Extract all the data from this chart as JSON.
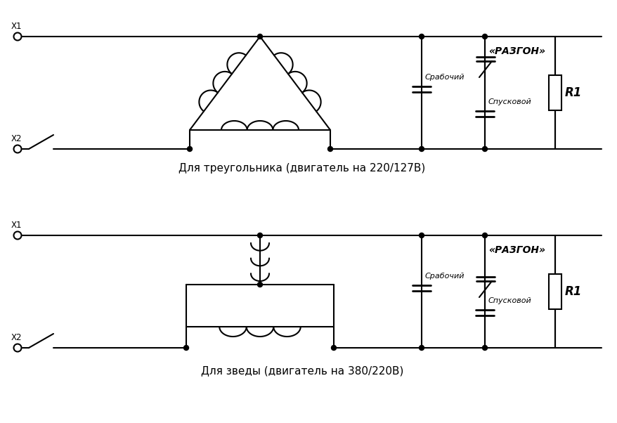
{
  "background_color": "#ffffff",
  "line_color": "#000000",
  "line_width": 1.5,
  "fig_width": 8.79,
  "fig_height": 6.02,
  "label_x1": "X1",
  "label_x2": "X2",
  "label_razgon": "«РАЗГОН»",
  "label_rabochiy": "Срабочий",
  "label_spuskovoy": "Спусковой",
  "label_R1": "R1",
  "title_top": "Для треугольника (двигатель на 220/127В)",
  "title_bot": "Для зведы (двигатель на 380/220В)"
}
